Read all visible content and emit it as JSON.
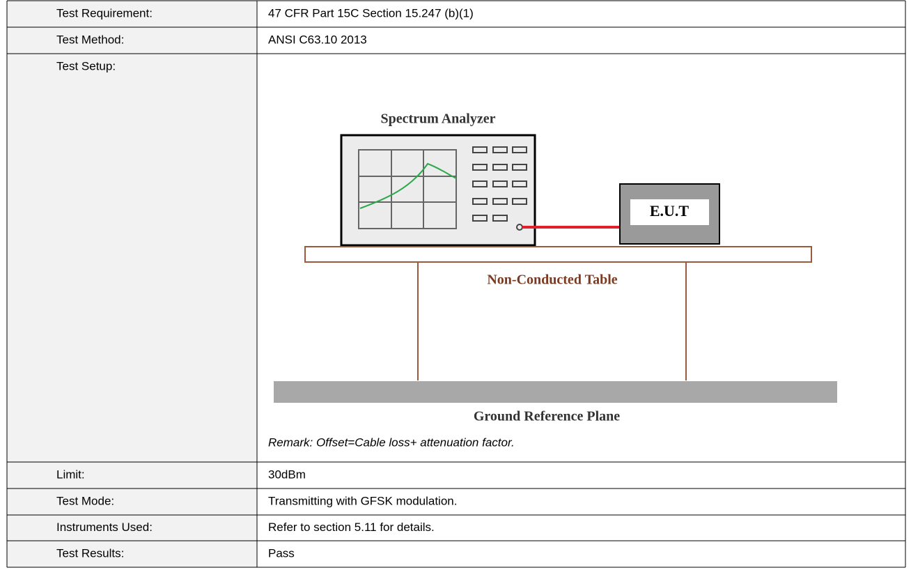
{
  "table": {
    "rows": [
      [
        "Test Requirement:",
        "47 CFR Part 15C Section 15.247 (b)(1)"
      ],
      [
        "Test Method:",
        "ANSI C63.10 2013"
      ],
      [
        "Test Setup:"
      ],
      [
        "Limit:",
        "30dBm"
      ],
      [
        "Test Mode:",
        "Transmitting with GFSK modulation."
      ],
      [
        "Instruments Used:",
        "Refer to section 5.11 for details."
      ],
      [
        "Test Results:",
        "Pass"
      ]
    ]
  },
  "setup_diagram": {
    "analyzer_label": "Spectrum Analyzer",
    "eut_label": "E.U.T",
    "table_label": "Non-Conducted Table",
    "ground_label": "Ground Reference Plane"
  },
  "remark": "Remark: Offset=Cable loss+ attenuation factor."
}
